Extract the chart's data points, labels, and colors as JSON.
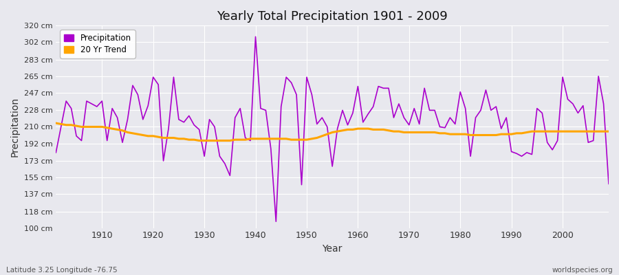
{
  "title": "Yearly Total Precipitation 1901 - 2009",
  "xlabel": "Year",
  "ylabel": "Precipitation",
  "subtitle_lat": "Latitude 3.25 Longitude -76.75",
  "watermark": "worldspecies.org",
  "precip_color": "#AA00CC",
  "trend_color": "#FFA500",
  "fig_bg": "#E8E8EE",
  "plot_bg": "#E8E8EE",
  "ylim": [
    100,
    320
  ],
  "yticks": [
    100,
    118,
    137,
    155,
    173,
    192,
    210,
    228,
    247,
    265,
    283,
    302,
    320
  ],
  "ytick_labels": [
    "100 cm",
    "118 cm",
    "137 cm",
    "155 cm",
    "173 cm",
    "192 cm",
    "210 cm",
    "228 cm",
    "247 cm",
    "265 cm",
    "283 cm",
    "302 cm",
    "320 cm"
  ],
  "years": [
    1901,
    1902,
    1903,
    1904,
    1905,
    1906,
    1907,
    1908,
    1909,
    1910,
    1911,
    1912,
    1913,
    1914,
    1915,
    1916,
    1917,
    1918,
    1919,
    1920,
    1921,
    1922,
    1923,
    1924,
    1925,
    1926,
    1927,
    1928,
    1929,
    1930,
    1931,
    1932,
    1933,
    1934,
    1935,
    1936,
    1937,
    1938,
    1939,
    1940,
    1941,
    1942,
    1943,
    1944,
    1945,
    1946,
    1947,
    1948,
    1949,
    1950,
    1951,
    1952,
    1953,
    1954,
    1955,
    1956,
    1957,
    1958,
    1959,
    1960,
    1961,
    1962,
    1963,
    1964,
    1965,
    1966,
    1967,
    1968,
    1969,
    1970,
    1971,
    1972,
    1973,
    1974,
    1975,
    1976,
    1977,
    1978,
    1979,
    1980,
    1981,
    1982,
    1983,
    1984,
    1985,
    1986,
    1987,
    1988,
    1989,
    1990,
    1991,
    1992,
    1993,
    1994,
    1995,
    1996,
    1997,
    1998,
    1999,
    2000,
    2001,
    2002,
    2003,
    2004,
    2005,
    2006,
    2007,
    2008,
    2009
  ],
  "precipitation": [
    182,
    210,
    238,
    230,
    200,
    195,
    238,
    235,
    232,
    238,
    195,
    230,
    220,
    193,
    218,
    255,
    245,
    218,
    233,
    264,
    256,
    173,
    208,
    264,
    218,
    215,
    222,
    212,
    207,
    178,
    218,
    210,
    178,
    170,
    157,
    220,
    230,
    198,
    195,
    308,
    230,
    228,
    186,
    107,
    232,
    264,
    258,
    245,
    147,
    264,
    245,
    213,
    220,
    210,
    167,
    208,
    228,
    212,
    225,
    254,
    215,
    224,
    232,
    254,
    252,
    252,
    220,
    235,
    220,
    212,
    230,
    213,
    252,
    228,
    228,
    210,
    209,
    220,
    213,
    248,
    230,
    178,
    220,
    228,
    250,
    228,
    232,
    208,
    220,
    183,
    181,
    178,
    182,
    180,
    230,
    225,
    193,
    185,
    195,
    264,
    240,
    235,
    225,
    233,
    193,
    195,
    265,
    235,
    148
  ],
  "trend": [
    214,
    213,
    212,
    212,
    211,
    210,
    210,
    210,
    210,
    210,
    209,
    208,
    207,
    206,
    204,
    203,
    202,
    201,
    200,
    200,
    199,
    198,
    198,
    198,
    197,
    197,
    196,
    196,
    195,
    195,
    195,
    195,
    195,
    195,
    195,
    196,
    196,
    196,
    197,
    197,
    197,
    197,
    197,
    197,
    197,
    197,
    196,
    196,
    196,
    196,
    197,
    198,
    200,
    202,
    204,
    205,
    206,
    207,
    207,
    208,
    208,
    208,
    207,
    207,
    207,
    206,
    205,
    205,
    204,
    204,
    204,
    204,
    204,
    204,
    204,
    203,
    203,
    202,
    202,
    202,
    202,
    201,
    201,
    201,
    201,
    201,
    201,
    202,
    202,
    202,
    203,
    203,
    204,
    205,
    205,
    205,
    205,
    205,
    205,
    205,
    205,
    205,
    205,
    205,
    205,
    205,
    205,
    205,
    205
  ]
}
